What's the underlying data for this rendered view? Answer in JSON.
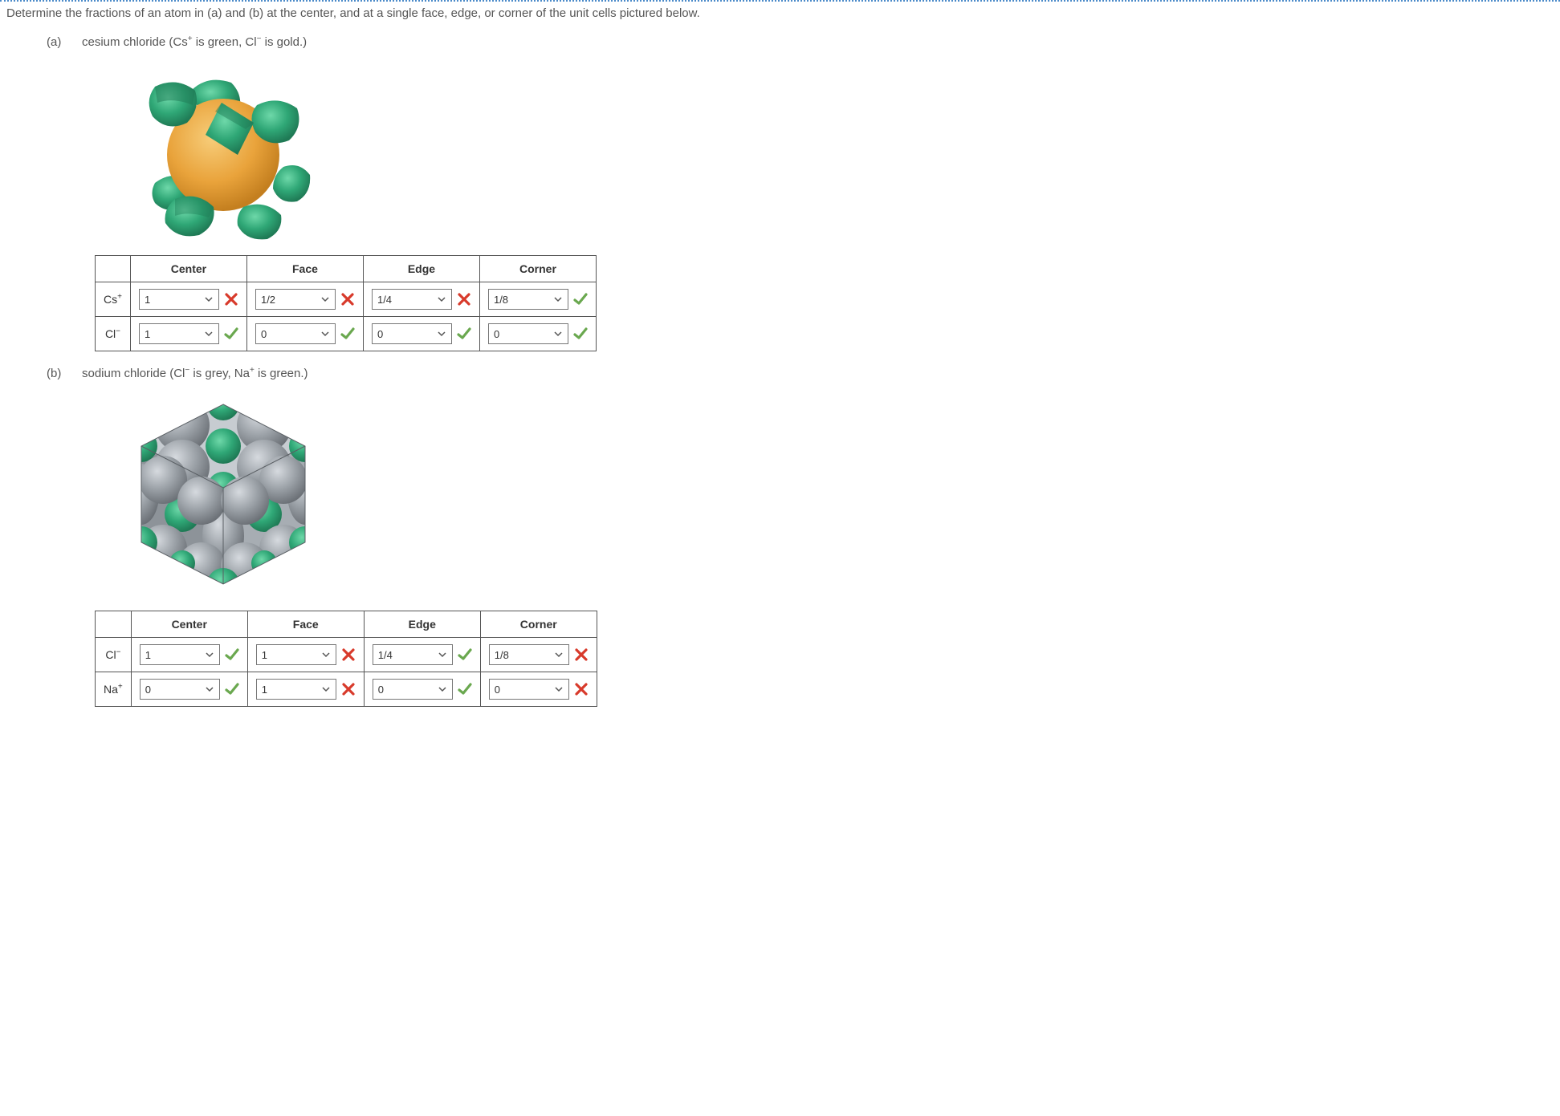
{
  "question": "Determine the fractions of an atom in (a) and (b) at the center, and at a single face, edge, or corner of the unit cells pictured below.",
  "headers": [
    "Center",
    "Face",
    "Edge",
    "Corner"
  ],
  "partA": {
    "label": "(a)",
    "desc_prefix": "cesium chloride (Cs",
    "desc_sup1": "+",
    "desc_mid": " is green, Cl",
    "desc_sup2": "−",
    "desc_suffix": " is gold.)",
    "rows": [
      {
        "label_base": "Cs",
        "label_sup": "+",
        "cells": [
          {
            "value": "1",
            "status": "wrong"
          },
          {
            "value": "1/2",
            "status": "wrong"
          },
          {
            "value": "1/4",
            "status": "wrong"
          },
          {
            "value": "1/8",
            "status": "correct"
          }
        ]
      },
      {
        "label_base": "Cl",
        "label_sup": "−",
        "cells": [
          {
            "value": "1",
            "status": "correct"
          },
          {
            "value": "0",
            "status": "correct"
          },
          {
            "value": "0",
            "status": "correct"
          },
          {
            "value": "0",
            "status": "correct"
          }
        ]
      }
    ]
  },
  "partB": {
    "label": "(b)",
    "desc_prefix": "sodium chloride (Cl",
    "desc_sup1": "−",
    "desc_mid": " is grey, Na",
    "desc_sup2": "+",
    "desc_suffix": " is green.)",
    "rows": [
      {
        "label_base": "Cl",
        "label_sup": "−",
        "cells": [
          {
            "value": "1",
            "status": "correct"
          },
          {
            "value": "1",
            "status": "wrong"
          },
          {
            "value": "1/4",
            "status": "correct"
          },
          {
            "value": "1/8",
            "status": "wrong"
          }
        ]
      },
      {
        "label_base": "Na",
        "label_sup": "+",
        "cells": [
          {
            "value": "0",
            "status": "correct"
          },
          {
            "value": "1",
            "status": "wrong"
          },
          {
            "value": "0",
            "status": "correct"
          },
          {
            "value": "0",
            "status": "wrong"
          }
        ]
      }
    ]
  },
  "colors": {
    "gold": "#e9a33b",
    "gold_dark": "#c47f1f",
    "green": "#2fa776",
    "green_dark": "#1f7a55",
    "grey": "#9aa0a6",
    "grey_dark": "#6b7076",
    "correct": "#6aa84f",
    "wrong": "#d83a2b"
  }
}
